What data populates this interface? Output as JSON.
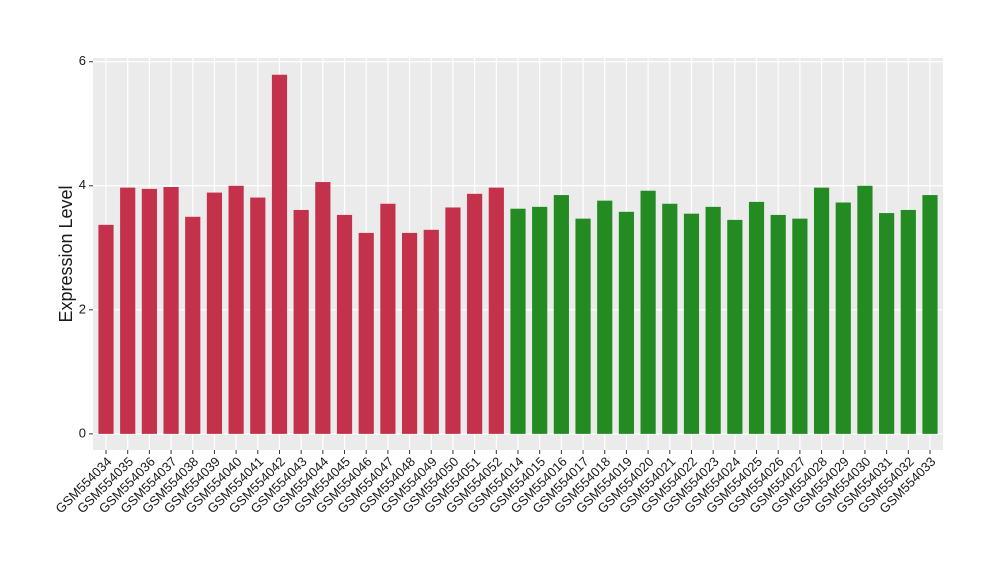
{
  "chart_data": {
    "type": "bar",
    "y_label": "Expression Level",
    "categories": [
      "GSM554034",
      "GSM554035",
      "GSM554036",
      "GSM554037",
      "GSM554038",
      "GSM554039",
      "GSM554040",
      "GSM554041",
      "GSM554042",
      "GSM554043",
      "GSM554044",
      "GSM554045",
      "GSM554046",
      "GSM554047",
      "GSM554048",
      "GSM554049",
      "GSM554050",
      "GSM554051",
      "GSM554052",
      "GSM554014",
      "GSM554015",
      "GSM554016",
      "GSM554017",
      "GSM554018",
      "GSM554019",
      "GSM554020",
      "GSM554021",
      "GSM554022",
      "GSM554023",
      "GSM554024",
      "GSM554025",
      "GSM554026",
      "GSM554027",
      "GSM554028",
      "GSM554029",
      "GSM554030",
      "GSM554031",
      "GSM554032",
      "GSM554033"
    ],
    "values": [
      3.37,
      3.97,
      3.95,
      3.98,
      3.5,
      3.89,
      4.0,
      3.81,
      5.79,
      3.61,
      4.06,
      3.53,
      3.24,
      3.71,
      3.24,
      3.29,
      3.65,
      3.87,
      3.97,
      3.63,
      3.66,
      3.85,
      3.47,
      3.76,
      3.58,
      3.92,
      3.71,
      3.55,
      3.66,
      3.45,
      3.74,
      3.53,
      3.47,
      3.97,
      3.73,
      4.0,
      3.56,
      3.61,
      3.85
    ],
    "colors": [
      "#c3314a",
      "#c3314a",
      "#c3314a",
      "#c3314a",
      "#c3314a",
      "#c3314a",
      "#c3314a",
      "#c3314a",
      "#c3314a",
      "#c3314a",
      "#c3314a",
      "#c3314a",
      "#c3314a",
      "#c3314a",
      "#c3314a",
      "#c3314a",
      "#c3314a",
      "#c3314a",
      "#c3314a",
      "#238b22",
      "#238b22",
      "#238b22",
      "#238b22",
      "#238b22",
      "#238b22",
      "#238b22",
      "#238b22",
      "#238b22",
      "#238b22",
      "#238b22",
      "#238b22",
      "#238b22",
      "#238b22",
      "#238b22",
      "#238b22",
      "#238b22",
      "#238b22",
      "#238b22",
      "#238b22"
    ],
    "ylim": [
      -0.26,
      6.06
    ],
    "yticks": [
      0,
      2,
      4,
      6
    ],
    "grid": true
  }
}
